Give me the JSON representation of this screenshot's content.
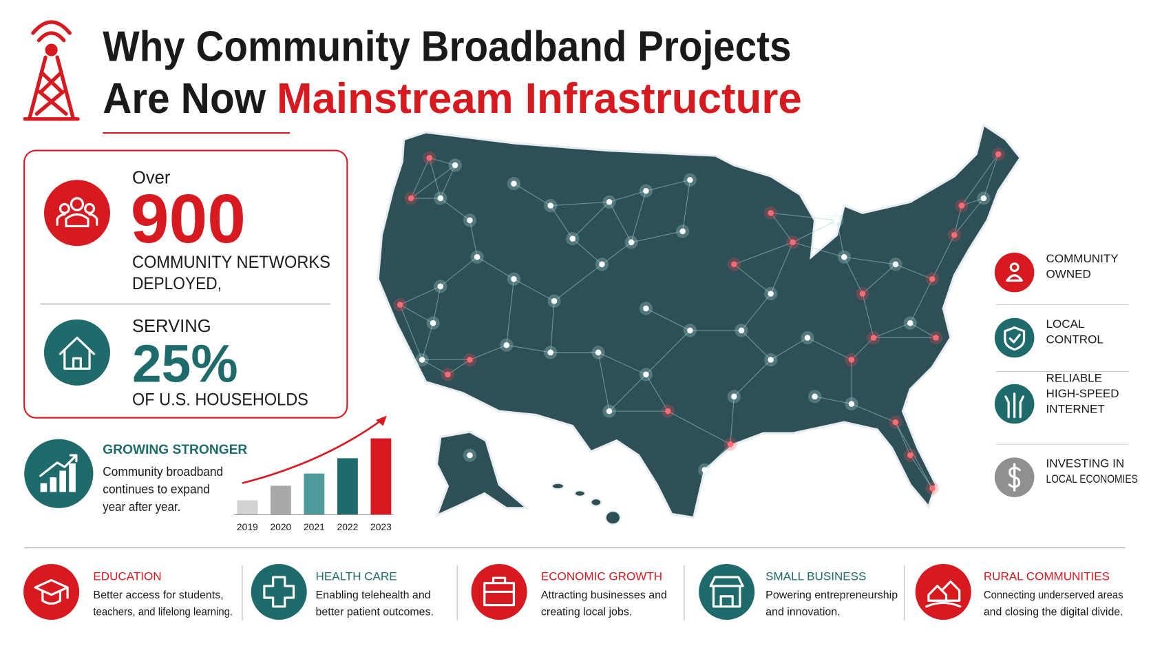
{
  "header": {
    "title_line1": "Why Community Broadband Projects",
    "title_line2_black": "Are Now",
    "title_line2_red": "Mainstream Infrastructure"
  },
  "stats": {
    "over": "Over",
    "networks_count": "900",
    "networks_label": [
      "COMMUNITY NETWORKS",
      "DEPLOYED,"
    ],
    "serving": "SERVING",
    "households_share": "25%",
    "households_label": "OF U.S. HOUSEHOLDS"
  },
  "growth": {
    "title": "GROWING STRONGER",
    "body": [
      "Community broadband",
      "continues to expand",
      "year after year."
    ],
    "chart": {
      "categories": [
        "2019",
        "2020",
        "2021",
        "2022",
        "2023"
      ],
      "values": [
        19,
        38,
        54,
        74,
        100
      ],
      "colors": [
        "#d3d3d3",
        "#a9a9ab",
        "#4f9a9b",
        "#1f6b6b",
        "#d71920"
      ]
    }
  },
  "benefits": [
    {
      "lines": [
        "COMMUNITY",
        "OWNED"
      ]
    },
    {
      "lines": [
        "LOCAL",
        "CONTROL"
      ]
    },
    {
      "lines": [
        "RELIABLE",
        "HIGH-SPEED",
        "INTERNET"
      ]
    },
    {
      "lines": [
        "INVESTING IN",
        "LOCAL ECONOMIES"
      ]
    }
  ],
  "impacts": [
    {
      "title": "EDUCATION",
      "body": [
        "Better access for students,",
        "teachers, and lifelong learning."
      ]
    },
    {
      "title": "HEALTH CARE",
      "body": [
        "Enabling telehealth and",
        "better patient outcomes."
      ]
    },
    {
      "title": "ECONOMIC GROWTH",
      "body": [
        "Attracting businesses and",
        "creating local jobs."
      ]
    },
    {
      "title": "SMALL BUSINESS",
      "body": [
        "Powering entrepreneurship",
        "and innovation."
      ]
    },
    {
      "title": "RURAL COMMUNITIES",
      "body": [
        "Connecting underserved areas",
        "and closing the digital divide."
      ]
    }
  ]
}
